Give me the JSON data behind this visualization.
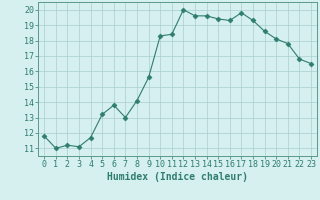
{
  "x": [
    0,
    1,
    2,
    3,
    4,
    5,
    6,
    7,
    8,
    9,
    10,
    11,
    12,
    13,
    14,
    15,
    16,
    17,
    18,
    19,
    20,
    21,
    22,
    23
  ],
  "y": [
    11.8,
    11.0,
    11.2,
    11.1,
    11.7,
    13.2,
    13.8,
    13.0,
    14.1,
    15.6,
    18.3,
    18.4,
    20.0,
    19.6,
    19.6,
    19.4,
    19.3,
    19.8,
    19.3,
    18.6,
    18.1,
    17.8,
    16.8,
    16.5
  ],
  "xlabel": "Humidex (Indice chaleur)",
  "ylim": [
    10.5,
    20.5
  ],
  "xlim": [
    -0.5,
    23.5
  ],
  "yticks": [
    11,
    12,
    13,
    14,
    15,
    16,
    17,
    18,
    19,
    20
  ],
  "xticks": [
    0,
    1,
    2,
    3,
    4,
    5,
    6,
    7,
    8,
    9,
    10,
    11,
    12,
    13,
    14,
    15,
    16,
    17,
    18,
    19,
    20,
    21,
    22,
    23
  ],
  "line_color": "#2e7d6e",
  "marker": "D",
  "marker_size": 2.5,
  "bg_color": "#d6efef",
  "grid_color": "#aacfcf",
  "xlabel_fontsize": 7,
  "tick_fontsize": 6
}
